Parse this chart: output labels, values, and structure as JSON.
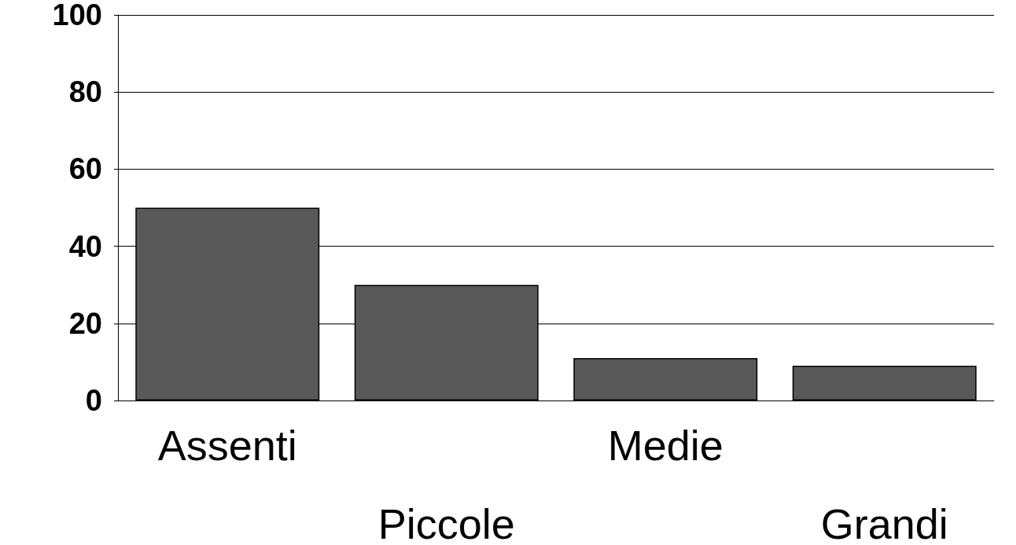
{
  "chart_data": {
    "type": "bar",
    "categories": [
      "Assenti",
      "Piccole",
      "Medie",
      "Grandi"
    ],
    "values": [
      50,
      30,
      11,
      9
    ],
    "color": "#595959",
    "ylim": [
      0,
      100
    ],
    "yticks": [
      0,
      20,
      40,
      60,
      80,
      100
    ],
    "grid": "y"
  }
}
